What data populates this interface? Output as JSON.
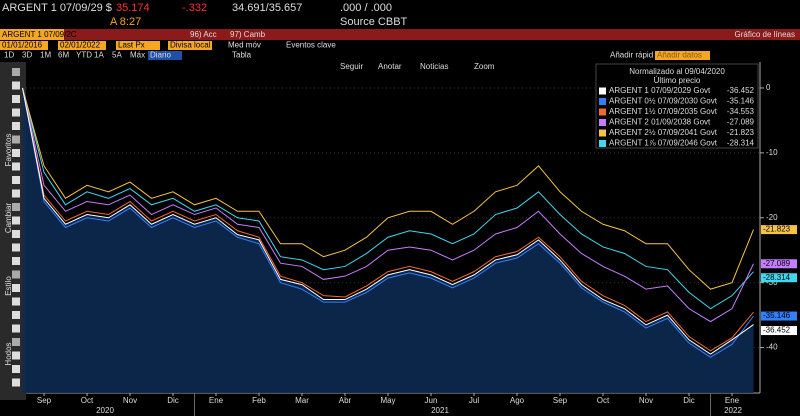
{
  "ui": {
    "ticker": "ARGENT 1 07/09/29 $",
    "price": "35.174",
    "change": "-.332",
    "bid_ask": "34.691/35.657",
    "yield": ".000 / .000",
    "time": "A 8:27",
    "source": "Source CBBT",
    "security_box": "ARGENT 1 07/09/2C",
    "menu_acc": "96) Acc",
    "menu_camb": "97) Camb",
    "chart_kind": "Gráfico de líneas",
    "start_date": "01/01/2016",
    "end_date": "02/01/2022",
    "field": "Last Px",
    "currency": "Divisa local",
    "moving_avg": "Med móv",
    "events": "Eventos clave",
    "periods": [
      "1D",
      "3D",
      "1M",
      "6M",
      "YTD",
      "1A",
      "5A",
      "Máx"
    ],
    "frequency": "Diario",
    "table": "Tabla",
    "quick_add": "Añadir rápid",
    "add_data": "Añadir datos",
    "tools": [
      "Seguir",
      "Anotar",
      "Noticias",
      "Zoom"
    ],
    "side_labels": [
      "Favoritos",
      "Cambiar",
      "Estilo",
      "Hodos"
    ]
  },
  "chart_data": {
    "type": "line",
    "legend_title": "Normalizado al 09/04/2020",
    "legend_subtitle": "Último precio",
    "categories": [
      null,
      "Sep",
      null,
      "Oct",
      null,
      "Nov",
      null,
      "Dic",
      null,
      "Ene",
      null,
      "Feb",
      null,
      "Mar",
      null,
      "Abr",
      null,
      "May",
      null,
      "Jun",
      null,
      "Jul",
      null,
      "Ago",
      null,
      "Sep",
      null,
      "Oct",
      null,
      "Nov",
      null,
      "Dic",
      null,
      "Ene",
      null
    ],
    "year_labels": [
      "2020",
      "2021",
      "2022"
    ],
    "ylim": [
      -47,
      4
    ],
    "yticks": [
      0,
      -10,
      -20,
      -30,
      -40
    ],
    "legend": "top-right",
    "series": [
      {
        "name": "ARGENT 1 07/09/2029 Govt",
        "color": "#ffffff",
        "values": [
          0,
          -17,
          -21,
          -19.5,
          -20,
          -18,
          -21,
          -19.5,
          -21,
          -20,
          -22.6,
          -23.4,
          -29.5,
          -30.3,
          -32.6,
          -32.6,
          -31,
          -28.8,
          -28,
          -28.8,
          -30.3,
          -28.8,
          -26.5,
          -25.7,
          -23.4,
          -26.5,
          -30.3,
          -32.6,
          -34,
          -36.5,
          -35,
          -38.8,
          -41,
          -38.8,
          -36.452
        ]
      },
      {
        "name": "ARGENT 0½ 07/09/2030 Govt",
        "color": "#2f7fff",
        "values": [
          0,
          -17.5,
          -21.5,
          -20,
          -20.5,
          -18.5,
          -21.5,
          -20,
          -21.5,
          -20.5,
          -23,
          -24,
          -30,
          -31,
          -33,
          -33,
          -31.5,
          -29.3,
          -28.5,
          -29.3,
          -30.8,
          -29.3,
          -27,
          -26.2,
          -24,
          -27,
          -30.8,
          -33,
          -34.5,
          -37,
          -35.5,
          -39.3,
          -41.5,
          -39.5,
          -35.146
        ]
      },
      {
        "name": "ARGENT 1½ 07/09/2035 Govt",
        "color": "#f06a30",
        "values": [
          0,
          -16.5,
          -20.5,
          -19,
          -19.5,
          -17.5,
          -20.5,
          -19,
          -20.5,
          -19.5,
          -22,
          -23,
          -29,
          -30,
          -32,
          -32.2,
          -30.5,
          -28.3,
          -27.5,
          -28.3,
          -29.8,
          -28.3,
          -26,
          -25.2,
          -23,
          -26,
          -29.8,
          -32,
          -33.5,
          -36,
          -34.5,
          -38.3,
          -40.5,
          -38.5,
          -34.553
        ]
      },
      {
        "name": "ARGENT 2 01/09/2038 Govt",
        "color": "#c77dff",
        "values": [
          0,
          -15,
          -19,
          -17.5,
          -18,
          -16.5,
          -19.5,
          -18,
          -19.5,
          -18.5,
          -21,
          -21.5,
          -27,
          -27.5,
          -29.5,
          -29,
          -27.5,
          -25,
          -24.5,
          -25,
          -26.5,
          -25,
          -22.5,
          -21.5,
          -19,
          -22.5,
          -25.5,
          -27.5,
          -29,
          -31,
          -30.5,
          -34,
          -36,
          -34,
          -27.089
        ]
      },
      {
        "name": "ARGENT 2½ 07/09/2041 Govt",
        "color": "#f5c542",
        "values": [
          0,
          -12,
          -17,
          -15,
          -16,
          -14.5,
          -17,
          -16,
          -18,
          -17,
          -19,
          -19,
          -24,
          -24,
          -26,
          -25,
          -23,
          -20,
          -19,
          -19,
          -21,
          -19,
          -16,
          -15,
          -12,
          -16,
          -19,
          -21,
          -22,
          -24,
          -24,
          -28,
          -31,
          -30,
          -21.823
        ]
      },
      {
        "name": "ARGENT 1⅞ 07/09/2046 Govt",
        "color": "#3fd8f0",
        "values": [
          0,
          -13,
          -18,
          -16,
          -17,
          -15.5,
          -18,
          -17,
          -19,
          -18,
          -20,
          -20.5,
          -26,
          -26.5,
          -28,
          -27.5,
          -25.5,
          -23,
          -22,
          -22.5,
          -24,
          -22.5,
          -19.5,
          -18.5,
          -16,
          -19.5,
          -22.5,
          -24.5,
          -25.5,
          -27.5,
          -28,
          -31.5,
          -34,
          -32,
          -28.314
        ]
      }
    ],
    "end_labels": [
      4,
      3,
      5,
      1,
      0
    ]
  }
}
